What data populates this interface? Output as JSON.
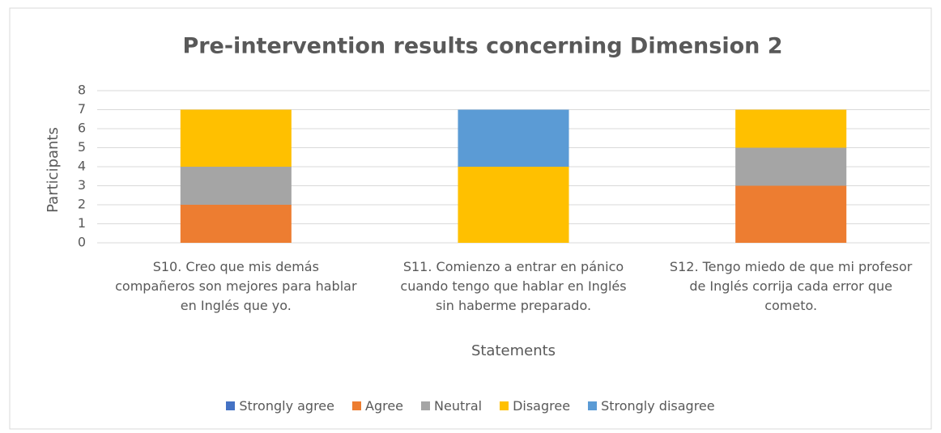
{
  "chart_data": {
    "type": "stacked_bar",
    "title": "Pre-intervention results concerning Dimension 2",
    "x_label": "Statements",
    "y_label": "Participants",
    "categories": [
      "S10. Creo que mis demás compañeros son mejores para hablar en Inglés que yo.",
      "S11. Comienzo a entrar en pánico cuando tengo que hablar en Inglés sin haberme preparado.",
      "S12. Tengo miedo de que mi profesor de Inglés corrija cada error que cometo."
    ],
    "series": [
      {
        "name": "Strongly agree",
        "color": "#4472c4",
        "values": [
          0,
          0,
          0
        ]
      },
      {
        "name": "Agree",
        "color": "#ed7d31",
        "values": [
          2,
          0,
          3
        ]
      },
      {
        "name": "Neutral",
        "color": "#a5a5a5",
        "values": [
          2,
          0,
          2
        ]
      },
      {
        "name": "Disagree",
        "color": "#ffc000",
        "values": [
          3,
          4,
          2
        ]
      },
      {
        "name": "Strongly disagree",
        "color": "#5b9bd5",
        "values": [
          0,
          3,
          0
        ]
      }
    ],
    "ylim": [
      0,
      8
    ],
    "yticks": [
      0,
      1,
      2,
      3,
      4,
      5,
      6,
      7,
      8
    ],
    "grid": true,
    "legend": "bottom"
  }
}
